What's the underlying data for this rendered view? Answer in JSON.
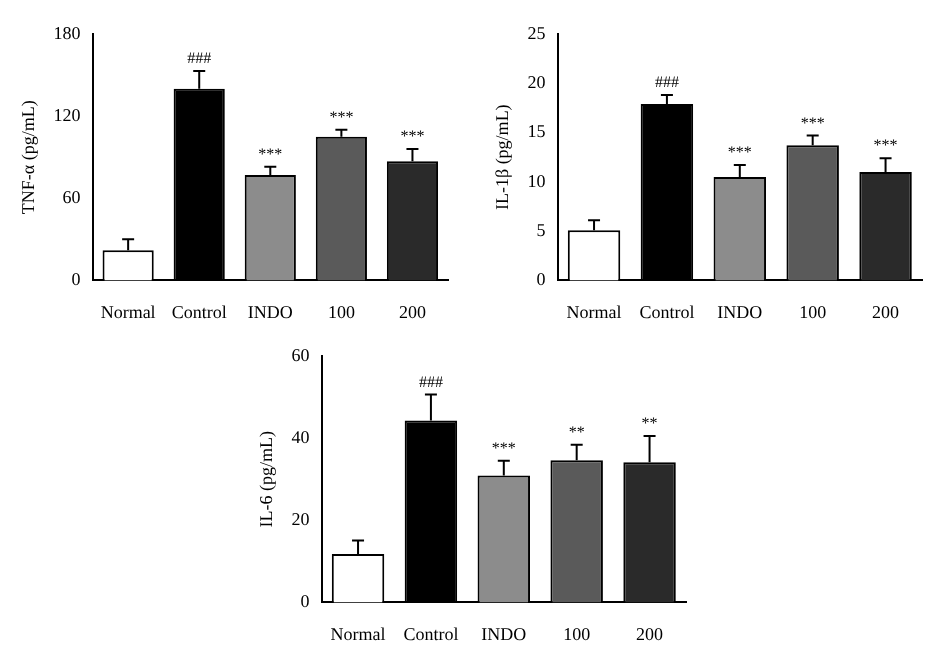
{
  "chart_data": [
    {
      "type": "bar",
      "ylabel": "TNF-α (pg/mL)",
      "categories": [
        "Normal",
        "Control",
        "INDO",
        "100",
        "200"
      ],
      "values": [
        22,
        140,
        77,
        105,
        87
      ],
      "errors": [
        8,
        13,
        6,
        5,
        9
      ],
      "colors": [
        "#ffffff",
        "#000000",
        "#8c8c8c",
        "#5a5a5a",
        "#2a2a2a"
      ],
      "ylim": [
        0,
        180
      ],
      "yticks": [
        0,
        60,
        120,
        180
      ],
      "annotations": [
        {
          "text": "###",
          "x": "Control",
          "y": 153
        },
        {
          "text": "***",
          "x": "INDO",
          "y": 83
        },
        {
          "text": "***",
          "x": "100",
          "y": 110
        },
        {
          "text": "***",
          "x": "200",
          "y": 96
        }
      ]
    },
    {
      "type": "bar",
      "ylabel": "IL-1β (pg/mL)",
      "categories": [
        "Normal",
        "Control",
        "INDO",
        "100",
        "200"
      ],
      "values": [
        5.1,
        17.9,
        10.5,
        13.7,
        11.0
      ],
      "errors": [
        1,
        0.9,
        1.2,
        1,
        1.4
      ],
      "colors": [
        "#ffffff",
        "#000000",
        "#8c8c8c",
        "#5a5a5a",
        "#2a2a2a"
      ],
      "ylim": [
        0,
        25
      ],
      "yticks": [
        0,
        5,
        10,
        15,
        20,
        25
      ],
      "annotations": [
        {
          "text": "###",
          "x": "Control",
          "y": 18.8
        },
        {
          "text": "***",
          "x": "INDO",
          "y": 11.7
        },
        {
          "text": "***",
          "x": "100",
          "y": 14.7
        },
        {
          "text": "***",
          "x": "200",
          "y": 12.4
        }
      ]
    },
    {
      "type": "bar",
      "ylabel": "IL-6 (pg/mL)",
      "categories": [
        "Normal",
        "Control",
        "INDO",
        "100",
        "200"
      ],
      "values": [
        11.8,
        44.3,
        30.9,
        34.6,
        34.1
      ],
      "errors": [
        3.3,
        6.3,
        3.6,
        3.8,
        6.4
      ],
      "colors": [
        "#ffffff",
        "#000000",
        "#8c8c8c",
        "#5a5a5a",
        "#2a2a2a"
      ],
      "ylim": [
        0,
        60
      ],
      "yticks": [
        0,
        20,
        40,
        60
      ],
      "annotations": [
        {
          "text": "###",
          "x": "Control",
          "y": 50.6
        },
        {
          "text": "***",
          "x": "INDO",
          "y": 34.5
        },
        {
          "text": "**",
          "x": "100",
          "y": 38.4
        },
        {
          "text": "**",
          "x": "200",
          "y": 40.5
        }
      ]
    }
  ]
}
